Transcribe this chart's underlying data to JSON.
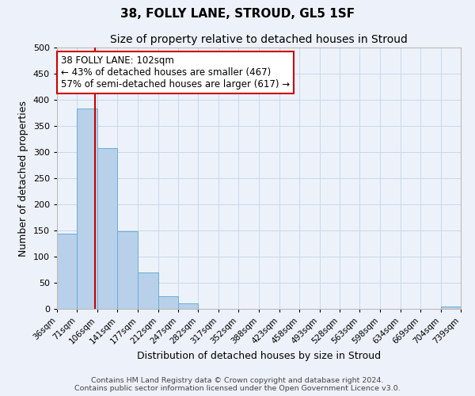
{
  "title": "38, FOLLY LANE, STROUD, GL5 1SF",
  "subtitle": "Size of property relative to detached houses in Stroud",
  "xlabel": "Distribution of detached houses by size in Stroud",
  "ylabel": "Number of detached properties",
  "bin_edges": [
    36,
    71,
    106,
    141,
    177,
    212,
    247,
    282,
    317,
    352,
    388,
    423,
    458,
    493,
    528,
    563,
    598,
    634,
    669,
    704,
    739
  ],
  "bar_heights": [
    144,
    384,
    308,
    148,
    70,
    24,
    10,
    0,
    0,
    0,
    0,
    0,
    0,
    0,
    0,
    0,
    0,
    0,
    0,
    5
  ],
  "tick_labels": [
    "36sqm",
    "71sqm",
    "106sqm",
    "141sqm",
    "177sqm",
    "212sqm",
    "247sqm",
    "282sqm",
    "317sqm",
    "352sqm",
    "388sqm",
    "423sqm",
    "458sqm",
    "493sqm",
    "528sqm",
    "563sqm",
    "598sqm",
    "634sqm",
    "669sqm",
    "704sqm",
    "739sqm"
  ],
  "bar_color": "#b8d0ea",
  "bar_edge_color": "#6aaed6",
  "grid_color": "#c8d8ec",
  "background_color": "#edf2fa",
  "property_line_x": 102,
  "property_line_color": "#cc0000",
  "annotation_line1": "38 FOLLY LANE: 102sqm",
  "annotation_line2": "← 43% of detached houses are smaller (467)",
  "annotation_line3": "57% of semi-detached houses are larger (617) →",
  "annotation_box_facecolor": "#ffffff",
  "annotation_box_edgecolor": "#cc0000",
  "footer_line1": "Contains HM Land Registry data © Crown copyright and database right 2024.",
  "footer_line2": "Contains public sector information licensed under the Open Government Licence v3.0.",
  "ylim": [
    0,
    500
  ],
  "yticks": [
    0,
    50,
    100,
    150,
    200,
    250,
    300,
    350,
    400,
    450,
    500
  ]
}
